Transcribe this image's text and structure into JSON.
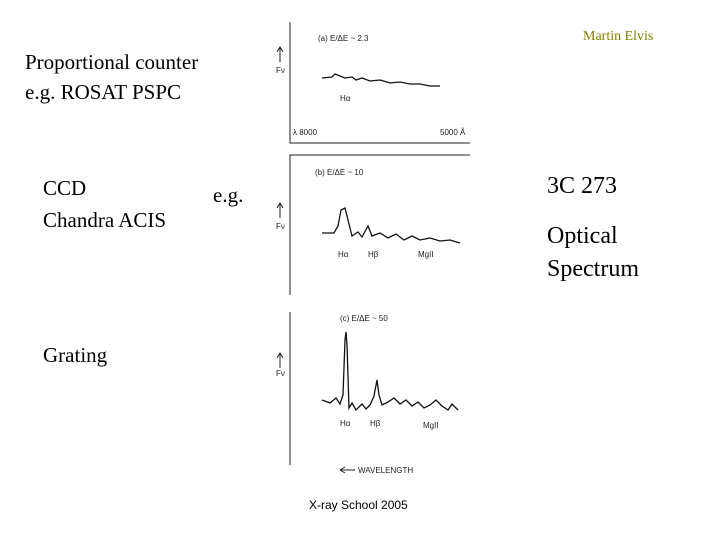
{
  "header": {
    "author": "Martin Elvis"
  },
  "left_labels": {
    "proportional": [
      "Proportional counter",
      "e.g. ROSAT PSPC"
    ],
    "ccd": [
      "CCD",
      "Chandra ACIS"
    ],
    "eg": "e.g.",
    "grating": "Grating"
  },
  "right_labels": {
    "object": "3C 273",
    "kind": [
      "Optical",
      "Spectrum"
    ]
  },
  "panels": [
    {
      "title": "(a) E/ΔE ~ 2.3",
      "y_label": "Fν",
      "lines": [
        "Hα"
      ],
      "x_left": "λ 8000",
      "x_right": "5000 Å"
    },
    {
      "title": "(b) E/ΔE ~ 10",
      "y_label": "Fν",
      "lines": [
        "Hα",
        "Hβ",
        "MgII"
      ]
    },
    {
      "title": "(c) E/ΔE ~ 50",
      "y_label": "Fν",
      "lines": [
        "Hα",
        "Hβ",
        "MgII"
      ],
      "x_axis": "WAVELENGTH"
    }
  ],
  "footer": "X-ray School 2005"
}
